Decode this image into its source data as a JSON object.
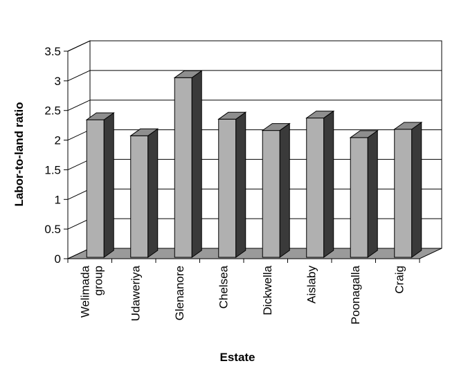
{
  "chart_data": {
    "type": "bar",
    "categories": [
      [
        "Welimada",
        "group"
      ],
      [
        "Udaweriya"
      ],
      [
        "Glenanore"
      ],
      [
        "Chelsea"
      ],
      [
        "Dickwella"
      ],
      [
        "Aislaby"
      ],
      [
        "Poonagalla"
      ],
      [
        "Craig"
      ]
    ],
    "values": [
      2.32,
      2.05,
      3.03,
      2.33,
      2.14,
      2.35,
      2.02,
      2.16
    ],
    "xlabel": "Estate",
    "ylabel": "Labor-to-land ratio",
    "ylim": [
      0,
      3.5
    ],
    "yticks": [
      "0",
      "0.5",
      "1",
      "1.5",
      "2",
      "2.5",
      "3",
      "3.5"
    ],
    "grid": true,
    "three_d": true,
    "colors": {
      "bar_front": "#b0b0b0",
      "bar_side": "#3a3a3a",
      "bar_top": "#8e8e8e",
      "floor": "#9a9a9a",
      "grid": "#000000"
    }
  }
}
